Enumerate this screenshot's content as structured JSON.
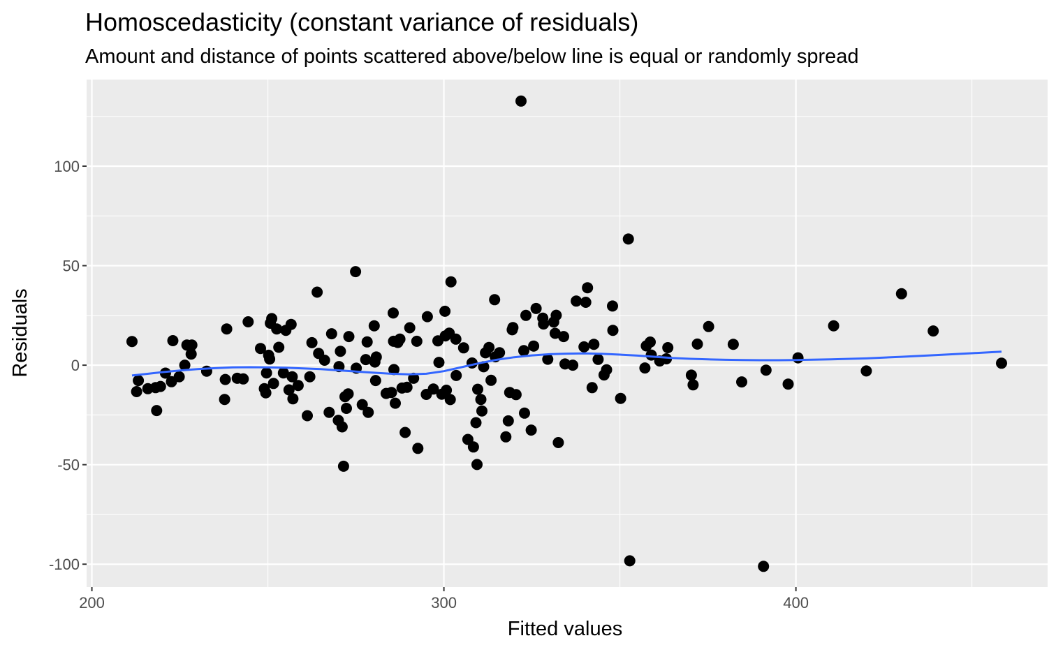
{
  "chart_data": {
    "type": "scatter",
    "title": "Homoscedasticity (constant variance of residuals)",
    "subtitle": "Amount and distance of points scattered above/below line is equal or randomly spread",
    "xlabel": "Fitted values",
    "ylabel": "Residuals",
    "xlim": [
      198.5,
      471.5
    ],
    "ylim": [
      -111.5,
      143.5
    ],
    "x_ticks": [
      200,
      300,
      400
    ],
    "x_tick_labels": [
      "200",
      "300",
      "400"
    ],
    "y_ticks": [
      -100,
      -50,
      0,
      50,
      100
    ],
    "y_tick_labels": [
      "-100",
      "-50",
      "0",
      "50",
      "100"
    ],
    "grid": true,
    "legend": "none",
    "colors": {
      "panel": "#ebebeb",
      "grid": "#ffffff",
      "points": "#000000",
      "smooth": "#3366ff",
      "tick_labels": "#4d4d4d"
    },
    "series": [
      {
        "kind": "points",
        "points": [
          [
            211.4,
            11.9
          ],
          [
            212.7,
            -13.3
          ],
          [
            213.2,
            -7.7
          ],
          [
            215.9,
            -11.8
          ],
          [
            218.1,
            -11.3
          ],
          [
            218.4,
            -22.8
          ],
          [
            219.5,
            -10.7
          ],
          [
            220.9,
            -4.0
          ],
          [
            222.6,
            -8.3
          ],
          [
            223.0,
            12.3
          ],
          [
            224.8,
            -5.8
          ],
          [
            226.4,
            0.0
          ],
          [
            227.0,
            10.1
          ],
          [
            228.2,
            5.6
          ],
          [
            228.4,
            10.1
          ],
          [
            232.6,
            -3.0
          ],
          [
            237.7,
            -17.2
          ],
          [
            237.9,
            -7.2
          ],
          [
            238.3,
            18.2
          ],
          [
            241.3,
            -6.6
          ],
          [
            243.0,
            -6.9
          ],
          [
            244.4,
            21.8
          ],
          [
            247.9,
            8.4
          ],
          [
            249.0,
            -11.8
          ],
          [
            249.4,
            -13.9
          ],
          [
            249.6,
            -3.9
          ],
          [
            250.2,
            5.0
          ],
          [
            250.5,
            3.1
          ],
          [
            250.7,
            21.1
          ],
          [
            251.1,
            23.4
          ],
          [
            251.6,
            -9.2
          ],
          [
            252.5,
            18.2
          ],
          [
            253.1,
            9.0
          ],
          [
            254.4,
            -3.9
          ],
          [
            255.1,
            17.5
          ],
          [
            256.0,
            -12.4
          ],
          [
            256.6,
            20.5
          ],
          [
            256.9,
            -5.8
          ],
          [
            257.1,
            -16.9
          ],
          [
            258.6,
            -10.2
          ],
          [
            261.2,
            -25.4
          ],
          [
            261.9,
            -5.8
          ],
          [
            262.5,
            11.3
          ],
          [
            264.0,
            36.7
          ],
          [
            264.4,
            5.9
          ],
          [
            266.1,
            2.5
          ],
          [
            267.4,
            -23.7
          ],
          [
            268.1,
            15.8
          ],
          [
            270.0,
            -27.7
          ],
          [
            270.2,
            -0.7
          ],
          [
            270.6,
            7.0
          ],
          [
            271.1,
            -31.0
          ],
          [
            271.5,
            -50.8
          ],
          [
            271.9,
            -15.8
          ],
          [
            272.3,
            -21.7
          ],
          [
            272.8,
            -14.4
          ],
          [
            273.0,
            14.4
          ],
          [
            274.9,
            47.0
          ],
          [
            275.1,
            -1.5
          ],
          [
            276.8,
            -19.8
          ],
          [
            277.8,
            2.8
          ],
          [
            278.2,
            11.7
          ],
          [
            278.5,
            -23.7
          ],
          [
            280.2,
            19.8
          ],
          [
            280.4,
            1.6
          ],
          [
            280.6,
            -7.7
          ],
          [
            280.8,
            4.1
          ],
          [
            283.6,
            -14.2
          ],
          [
            285.1,
            -13.7
          ],
          [
            285.6,
            26.2
          ],
          [
            285.7,
            12.0
          ],
          [
            285.8,
            -2.2
          ],
          [
            286.2,
            -19.1
          ],
          [
            286.9,
            11.4
          ],
          [
            287.5,
            13.1
          ],
          [
            288.1,
            -11.5
          ],
          [
            289.0,
            -33.8
          ],
          [
            289.5,
            -11.1
          ],
          [
            290.3,
            18.8
          ],
          [
            291.4,
            -6.6
          ],
          [
            292.3,
            12.0
          ],
          [
            292.6,
            -41.8
          ],
          [
            295.0,
            -14.7
          ],
          [
            295.3,
            24.4
          ],
          [
            297.0,
            -12.0
          ],
          [
            298.3,
            12.2
          ],
          [
            298.6,
            1.4
          ],
          [
            299.4,
            -14.6
          ],
          [
            300.3,
            27.1
          ],
          [
            300.4,
            14.7
          ],
          [
            300.7,
            -12.6
          ],
          [
            301.5,
            16.1
          ],
          [
            301.8,
            -17.3
          ],
          [
            302.0,
            41.9
          ],
          [
            303.4,
            13.1
          ],
          [
            303.5,
            -5.2
          ],
          [
            305.6,
            8.7
          ],
          [
            306.8,
            -37.3
          ],
          [
            308.0,
            1.1
          ],
          [
            308.4,
            -41.1
          ],
          [
            309.1,
            -28.9
          ],
          [
            309.4,
            -49.9
          ],
          [
            309.6,
            -12.1
          ],
          [
            310.5,
            -17.2
          ],
          [
            310.8,
            -23.0
          ],
          [
            311.3,
            -0.8
          ],
          [
            311.8,
            6.2
          ],
          [
            312.8,
            8.9
          ],
          [
            313.4,
            -7.6
          ],
          [
            314.4,
            32.9
          ],
          [
            314.6,
            4.2
          ],
          [
            315.8,
            6.3
          ],
          [
            317.6,
            -36.0
          ],
          [
            318.3,
            -28.0
          ],
          [
            318.7,
            -13.7
          ],
          [
            319.4,
            17.8
          ],
          [
            319.6,
            18.9
          ],
          [
            320.5,
            -14.8
          ],
          [
            321.9,
            132.7
          ],
          [
            322.7,
            7.3
          ],
          [
            322.9,
            -24.1
          ],
          [
            323.3,
            25.0
          ],
          [
            324.8,
            -32.6
          ],
          [
            325.5,
            9.6
          ],
          [
            326.2,
            28.5
          ],
          [
            328.1,
            23.6
          ],
          [
            328.3,
            20.7
          ],
          [
            329.5,
            3.0
          ],
          [
            331.2,
            21.7
          ],
          [
            331.6,
            16.0
          ],
          [
            331.9,
            25.1
          ],
          [
            332.5,
            -38.9
          ],
          [
            334.0,
            14.4
          ],
          [
            334.4,
            0.6
          ],
          [
            336.6,
            0.0
          ],
          [
            337.6,
            32.2
          ],
          [
            339.8,
            9.2
          ],
          [
            340.3,
            31.6
          ],
          [
            340.8,
            38.9
          ],
          [
            342.1,
            -11.3
          ],
          [
            342.6,
            10.5
          ],
          [
            343.8,
            2.9
          ],
          [
            345.5,
            -4.9
          ],
          [
            346.2,
            -2.3
          ],
          [
            347.9,
            29.7
          ],
          [
            348.0,
            17.5
          ],
          [
            350.2,
            -16.7
          ],
          [
            352.4,
            63.4
          ],
          [
            352.8,
            -98.3
          ],
          [
            357.1,
            -1.4
          ],
          [
            357.5,
            9.7
          ],
          [
            358.6,
            11.6
          ],
          [
            358.9,
            5.1
          ],
          [
            361.3,
            2.1
          ],
          [
            363.2,
            3.2
          ],
          [
            363.6,
            8.8
          ],
          [
            370.3,
            -5.0
          ],
          [
            370.8,
            -9.9
          ],
          [
            372.0,
            10.6
          ],
          [
            375.2,
            19.4
          ],
          [
            382.2,
            10.5
          ],
          [
            384.6,
            -8.4
          ],
          [
            390.8,
            -101.1
          ],
          [
            391.5,
            -2.5
          ],
          [
            397.8,
            -9.5
          ],
          [
            400.6,
            3.7
          ],
          [
            410.7,
            19.8
          ],
          [
            420.0,
            -2.9
          ],
          [
            430.0,
            35.9
          ],
          [
            439.0,
            17.2
          ],
          [
            458.4,
            1.0
          ]
        ]
      },
      {
        "kind": "smooth",
        "points": [
          [
            211.4,
            -5.2
          ],
          [
            216,
            -4.3
          ],
          [
            220,
            -3.5
          ],
          [
            225,
            -2.7
          ],
          [
            230,
            -2.0
          ],
          [
            235,
            -1.5
          ],
          [
            240,
            -1.1
          ],
          [
            245,
            -1.0
          ],
          [
            250,
            -1.1
          ],
          [
            255,
            -1.3
          ],
          [
            260,
            -1.6
          ],
          [
            265,
            -2.0
          ],
          [
            270,
            -2.6
          ],
          [
            275,
            -3.2
          ],
          [
            280,
            -3.8
          ],
          [
            285,
            -4.3
          ],
          [
            290,
            -4.6
          ],
          [
            295,
            -4.3
          ],
          [
            300,
            -3.0
          ],
          [
            305,
            -1.0
          ],
          [
            310,
            1.0
          ],
          [
            315,
            2.7
          ],
          [
            320,
            4.0
          ],
          [
            325,
            4.9
          ],
          [
            330,
            5.5
          ],
          [
            335,
            5.8
          ],
          [
            340,
            5.9
          ],
          [
            345,
            5.7
          ],
          [
            350,
            5.3
          ],
          [
            355,
            4.8
          ],
          [
            360,
            4.2
          ],
          [
            365,
            3.6
          ],
          [
            370,
            3.2
          ],
          [
            375,
            2.9
          ],
          [
            380,
            2.7
          ],
          [
            385,
            2.6
          ],
          [
            390,
            2.5
          ],
          [
            395,
            2.5
          ],
          [
            400,
            2.6
          ],
          [
            410,
            2.9
          ],
          [
            420,
            3.4
          ],
          [
            430,
            4.2
          ],
          [
            440,
            5.1
          ],
          [
            450,
            6.0
          ],
          [
            458.4,
            6.8
          ]
        ]
      }
    ]
  }
}
